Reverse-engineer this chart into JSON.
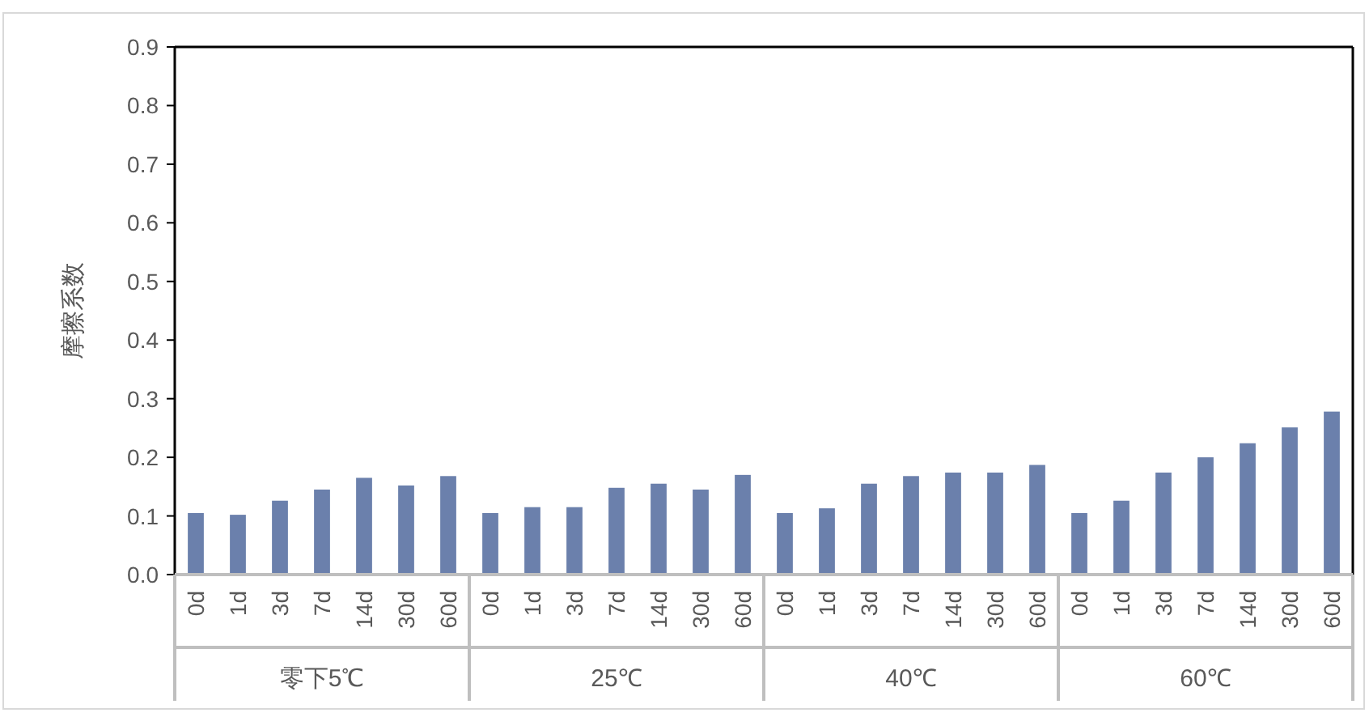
{
  "chart_data": {
    "type": "bar",
    "ylabel": "摩擦系数",
    "categories": [
      "0d",
      "1d",
      "3d",
      "7d",
      "14d",
      "30d",
      "60d",
      "0d",
      "1d",
      "3d",
      "7d",
      "14d",
      "30d",
      "60d",
      "0d",
      "1d",
      "3d",
      "7d",
      "14d",
      "30d",
      "60d",
      "0d",
      "1d",
      "3d",
      "7d",
      "14d",
      "30d",
      "60d"
    ],
    "values": [
      0.105,
      0.102,
      0.126,
      0.145,
      0.165,
      0.152,
      0.168,
      0.105,
      0.115,
      0.115,
      0.148,
      0.155,
      0.145,
      0.17,
      0.105,
      0.113,
      0.155,
      0.168,
      0.174,
      0.174,
      0.187,
      0.105,
      0.126,
      0.174,
      0.2,
      0.224,
      0.251,
      0.278
    ],
    "color": "#6b80ac",
    "ylim": [
      0,
      0.9
    ],
    "yticks": [
      {
        "value": 0,
        "label": "0.0"
      },
      {
        "value": 0.1,
        "label": "0.1"
      },
      {
        "value": 0.2,
        "label": "0.2"
      },
      {
        "value": 0.3,
        "label": "0.3"
      },
      {
        "value": 0.4,
        "label": "0.4"
      },
      {
        "value": 0.5,
        "label": "0.5"
      },
      {
        "value": 0.6,
        "label": "0.6"
      },
      {
        "value": 0.7,
        "label": "0.7"
      },
      {
        "value": 0.8,
        "label": "0.8"
      },
      {
        "value": 0.9,
        "label": "0.9"
      }
    ],
    "annotations": [
      "零下5℃",
      "25℃",
      "40℃",
      "60℃"
    ],
    "grid": false
  }
}
